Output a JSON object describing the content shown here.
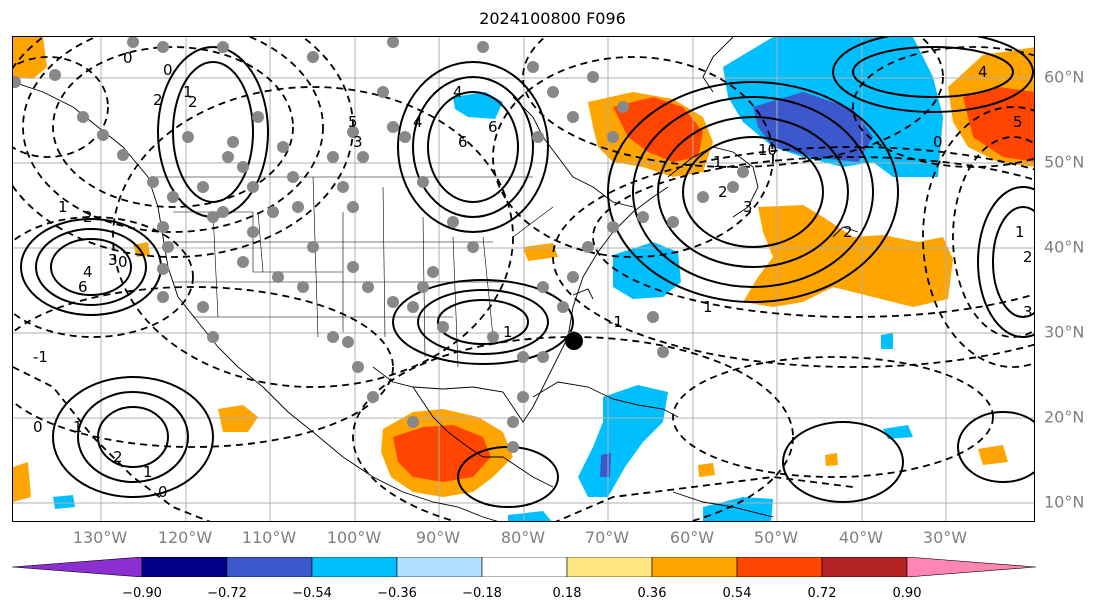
{
  "title": "2024100800 F096",
  "lon_labels": [
    "130°W",
    "120°W",
    "110°W",
    "100°W",
    "90°W",
    "80°W",
    "70°W",
    "60°W",
    "50°W",
    "40°W",
    "30°W"
  ],
  "lat_labels": [
    "60°N",
    "50°N",
    "40°N",
    "30°N",
    "20°N",
    "10°N"
  ],
  "colorbar": {
    "ticks": [
      "−0.90",
      "−0.72",
      "−0.54",
      "−0.36",
      "−0.18",
      "0.18",
      "0.36",
      "0.54",
      "0.72",
      "0.90"
    ],
    "colors": [
      "#8b2fd0",
      "#00008b",
      "#3d58cc",
      "#00bfff",
      "#b0e2ff",
      "#ffffff",
      "#ffe680",
      "#ffa500",
      "#ff4500",
      "#b22222",
      "#ff85b3"
    ]
  },
  "contour_labels": [
    "0",
    "1",
    "2",
    "3",
    "4",
    "6",
    "0",
    "2",
    "1",
    "2",
    "4",
    "6",
    "5",
    "3",
    "4",
    "6",
    "10",
    "1",
    "2",
    "3",
    "2",
    "1",
    "-1",
    "-1",
    "0",
    "1",
    "2",
    "1",
    "0",
    "0",
    "1",
    "2",
    "4",
    "0",
    "5",
    "3",
    "1"
  ],
  "marker_icon": "filled-circle-icon",
  "map_features": [
    "coastlines",
    "us-state-borders",
    "gridlines",
    "gray-station-dots",
    "positive-contours-solid",
    "negative-contours-dashed",
    "shaded-anomaly-fill"
  ]
}
